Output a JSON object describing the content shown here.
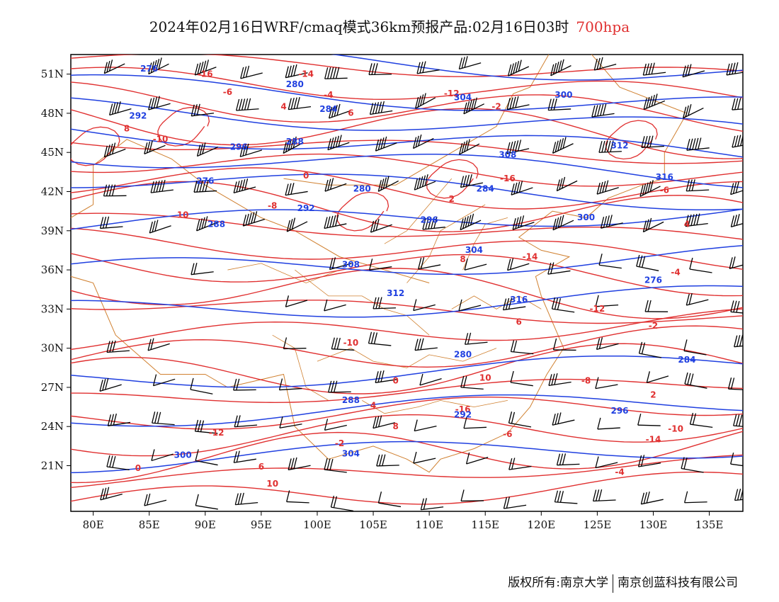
{
  "title": {
    "main": "2024年02月16日WRF/cmaq模式36km预报产品:02月16日03时",
    "level": "700hpa",
    "level_color": "#e03030"
  },
  "copyright": {
    "owner1": "版权所有:南京大学",
    "owner2": "南京创蓝科技有限公司"
  },
  "map": {
    "lon_range": [
      78,
      138
    ],
    "lat_range": [
      17.5,
      52.5
    ],
    "lon_ticks": [
      "80E",
      "85E",
      "90E",
      "95E",
      "100E",
      "105E",
      "110E",
      "115E",
      "120E",
      "125E",
      "130E",
      "135E"
    ],
    "lon_tick_values": [
      80,
      85,
      90,
      95,
      100,
      105,
      110,
      115,
      120,
      125,
      130,
      135
    ],
    "lat_ticks": [
      "51N",
      "48N",
      "45N",
      "42N",
      "39N",
      "36N",
      "33N",
      "30N",
      "27N",
      "24N",
      "21N"
    ],
    "lat_tick_values": [
      51,
      48,
      45,
      42,
      39,
      36,
      33,
      30,
      27,
      24,
      21
    ],
    "colors": {
      "temperature": "#e03030",
      "geopotential": "#2040e0",
      "wind": "#000000",
      "boundary": "#d08030"
    },
    "temperature_labels": [
      "-16",
      "-14",
      "-12",
      "-10",
      "-8",
      "-6",
      "-4",
      "-2",
      "0",
      "2",
      "4",
      "6",
      "8",
      "10"
    ],
    "geopotential_labels": [
      "276",
      "280",
      "284",
      "288",
      "292",
      "296",
      "300",
      "304",
      "308",
      "312",
      "316"
    ]
  }
}
